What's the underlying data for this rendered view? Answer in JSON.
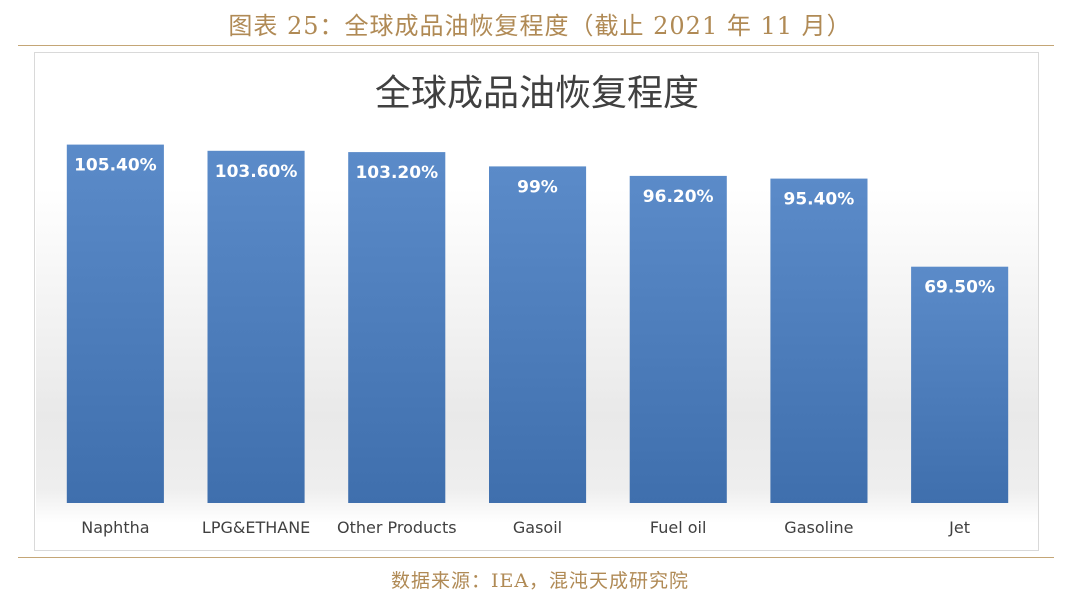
{
  "figure_caption": "图表 25：全球成品油恢复程度（截止 2021 年 11 月）",
  "source_note": "数据来源：IEA，混沌天成研究院",
  "colors": {
    "bar": "#4a7ab8",
    "bar_top": "#5b8bc9",
    "label": "#ffffff",
    "axis_text": "#404040",
    "title": "#404040",
    "caption": "#b08a55",
    "rule": "#c4a676"
  },
  "chart_data": {
    "type": "bar",
    "title": "全球成品油恢复程度",
    "xlabel": "",
    "ylabel": "",
    "ylim": [
      0,
      110
    ],
    "grid": false,
    "legend": "none",
    "categories": [
      "Naphtha",
      "LPG&ETHANE",
      "Other Products",
      "Gasoil",
      "Fuel oil",
      "Gasoline",
      "Jet"
    ],
    "values": [
      105.4,
      103.6,
      103.2,
      99,
      96.2,
      95.4,
      69.5
    ],
    "data_labels": [
      "105.40%",
      "103.60%",
      "103.20%",
      "99%",
      "96.20%",
      "95.40%",
      "69.50%"
    ]
  }
}
